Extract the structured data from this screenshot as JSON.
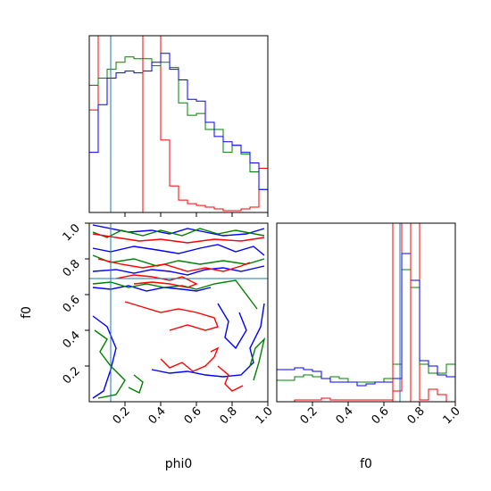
{
  "chart_data": {
    "type": "corner",
    "parameters": [
      "phi0",
      "f0"
    ],
    "axis_labels": {
      "x_left": "phi0",
      "x_right": "f0",
      "y_left": "f0"
    },
    "ticks": {
      "phi0": [
        0.2,
        0.4,
        0.6,
        0.8,
        1.0
      ],
      "phi0_labels": [
        "0.2",
        "0.4",
        "0.6",
        "0.8",
        "1.0"
      ],
      "f0": [
        0.2,
        0.4,
        0.6,
        0.8,
        1.0
      ],
      "f0_labels": [
        "0.2",
        "0.4",
        "0.6",
        "0.8",
        "1.0"
      ]
    },
    "ranges": {
      "phi0": [
        0.0,
        1.0
      ],
      "f0": [
        0.0,
        1.0
      ]
    },
    "colors": {
      "red": "#ff0000",
      "green": "#008000",
      "blue": "#0000ff",
      "truth": "#1f77b4"
    },
    "truth_lines": {
      "phi0": 0.12,
      "f0": 0.69
    },
    "red_markers": {
      "phi0": [
        0.0,
        0.3
      ],
      "f0": [
        0.65,
        0.75
      ]
    },
    "hist_phi0": {
      "bin_edges": [
        0.0,
        0.05,
        0.1,
        0.15,
        0.2,
        0.25,
        0.3,
        0.35,
        0.4,
        0.45,
        0.5,
        0.55,
        0.6,
        0.65,
        0.7,
        0.75,
        0.8,
        0.85,
        0.9,
        0.95,
        1.0
      ],
      "ymax": 1.0,
      "series": [
        {
          "color": "red",
          "values": [
            0.58,
            1.05,
            1.05,
            1.05,
            1.05,
            1.05,
            1.05,
            1.05,
            0.41,
            0.15,
            0.07,
            0.05,
            0.04,
            0.03,
            0.02,
            0.01,
            0.01,
            0.02,
            0.03,
            0.25
          ]
        },
        {
          "color": "green",
          "values": [
            0.72,
            0.76,
            0.81,
            0.85,
            0.88,
            0.87,
            0.87,
            0.83,
            0.85,
            0.82,
            0.62,
            0.55,
            0.56,
            0.47,
            0.47,
            0.34,
            0.38,
            0.33,
            0.23,
            0.13
          ]
        },
        {
          "color": "blue",
          "values": [
            0.34,
            0.61,
            0.76,
            0.79,
            0.8,
            0.79,
            0.8,
            0.85,
            0.9,
            0.81,
            0.75,
            0.64,
            0.63,
            0.51,
            0.43,
            0.4,
            0.38,
            0.34,
            0.28,
            0.13
          ]
        }
      ]
    },
    "hist_f0": {
      "bin_edges": [
        0.0,
        0.05,
        0.1,
        0.15,
        0.2,
        0.25,
        0.3,
        0.35,
        0.4,
        0.45,
        0.5,
        0.55,
        0.6,
        0.65,
        0.7,
        0.75,
        0.8,
        0.85,
        0.9,
        0.95,
        1.0
      ],
      "ymax": 1.0,
      "series": [
        {
          "color": "red",
          "values": [
            0.0,
            0.0,
            0.01,
            0.01,
            0.01,
            0.02,
            0.01,
            0.01,
            0.01,
            0.01,
            0.01,
            0.01,
            0.01,
            0.06,
            1.05,
            1.05,
            0.01,
            0.07,
            0.04,
            0.0
          ]
        },
        {
          "color": "green",
          "values": [
            0.12,
            0.12,
            0.14,
            0.15,
            0.14,
            0.13,
            0.14,
            0.13,
            0.11,
            0.11,
            0.11,
            0.11,
            0.13,
            0.21,
            0.74,
            0.64,
            0.21,
            0.16,
            0.16,
            0.21
          ]
        },
        {
          "color": "blue",
          "values": [
            0.18,
            0.18,
            0.19,
            0.18,
            0.17,
            0.13,
            0.11,
            0.11,
            0.11,
            0.09,
            0.1,
            0.11,
            0.11,
            0.13,
            0.83,
            0.68,
            0.23,
            0.2,
            0.15,
            0.14
          ]
        }
      ]
    },
    "contours": [
      {
        "color": "blue",
        "points": [
          [
            0.02,
            0.99
          ],
          [
            0.12,
            0.97
          ],
          [
            0.22,
            0.95
          ],
          [
            0.35,
            0.96
          ],
          [
            0.45,
            0.94
          ],
          [
            0.55,
            0.97
          ],
          [
            0.65,
            0.95
          ],
          [
            0.75,
            0.93
          ],
          [
            0.88,
            0.94
          ],
          [
            0.98,
            0.97
          ]
        ]
      },
      {
        "color": "blue",
        "points": [
          [
            0.02,
            0.86
          ],
          [
            0.12,
            0.84
          ],
          [
            0.25,
            0.87
          ],
          [
            0.38,
            0.85
          ],
          [
            0.5,
            0.83
          ],
          [
            0.62,
            0.86
          ],
          [
            0.72,
            0.88
          ],
          [
            0.82,
            0.84
          ],
          [
            0.92,
            0.87
          ],
          [
            0.98,
            0.82
          ]
        ]
      },
      {
        "color": "blue",
        "points": [
          [
            0.02,
            0.73
          ],
          [
            0.15,
            0.74
          ],
          [
            0.25,
            0.72
          ],
          [
            0.35,
            0.74
          ],
          [
            0.45,
            0.73
          ],
          [
            0.55,
            0.71
          ],
          [
            0.65,
            0.74
          ],
          [
            0.75,
            0.75
          ],
          [
            0.85,
            0.73
          ],
          [
            0.98,
            0.76
          ]
        ]
      },
      {
        "color": "blue",
        "points": [
          [
            0.02,
            0.64
          ],
          [
            0.12,
            0.63
          ],
          [
            0.22,
            0.65
          ],
          [
            0.32,
            0.62
          ],
          [
            0.42,
            0.64
          ],
          [
            0.52,
            0.63
          ],
          [
            0.6,
            0.62
          ],
          [
            0.68,
            0.64
          ]
        ]
      },
      {
        "color": "blue",
        "points": [
          [
            0.02,
            0.48
          ],
          [
            0.1,
            0.42
          ],
          [
            0.15,
            0.3
          ],
          [
            0.12,
            0.18
          ],
          [
            0.08,
            0.06
          ],
          [
            0.02,
            0.02
          ]
        ]
      },
      {
        "color": "blue",
        "points": [
          [
            0.35,
            0.18
          ],
          [
            0.45,
            0.16
          ],
          [
            0.55,
            0.17
          ],
          [
            0.65,
            0.15
          ],
          [
            0.75,
            0.14
          ],
          [
            0.85,
            0.15
          ],
          [
            0.92,
            0.22
          ],
          [
            0.9,
            0.3
          ],
          [
            0.96,
            0.42
          ],
          [
            0.98,
            0.55
          ]
        ]
      },
      {
        "color": "blue",
        "points": [
          [
            0.72,
            0.55
          ],
          [
            0.78,
            0.45
          ],
          [
            0.76,
            0.36
          ],
          [
            0.82,
            0.3
          ],
          [
            0.88,
            0.4
          ],
          [
            0.84,
            0.5
          ]
        ]
      },
      {
        "color": "green",
        "points": [
          [
            0.02,
            0.95
          ],
          [
            0.1,
            0.92
          ],
          [
            0.18,
            0.96
          ],
          [
            0.3,
            0.93
          ],
          [
            0.4,
            0.96
          ],
          [
            0.52,
            0.93
          ],
          [
            0.62,
            0.97
          ],
          [
            0.72,
            0.94
          ],
          [
            0.82,
            0.96
          ],
          [
            0.98,
            0.93
          ]
        ]
      },
      {
        "color": "green",
        "points": [
          [
            0.02,
            0.82
          ],
          [
            0.12,
            0.78
          ],
          [
            0.25,
            0.8
          ],
          [
            0.38,
            0.76
          ],
          [
            0.5,
            0.79
          ],
          [
            0.62,
            0.77
          ],
          [
            0.75,
            0.79
          ],
          [
            0.88,
            0.77
          ],
          [
            0.98,
            0.8
          ]
        ]
      },
      {
        "color": "green",
        "points": [
          [
            0.02,
            0.66
          ],
          [
            0.12,
            0.67
          ],
          [
            0.22,
            0.64
          ],
          [
            0.32,
            0.66
          ],
          [
            0.42,
            0.64
          ],
          [
            0.52,
            0.65
          ],
          [
            0.6,
            0.63
          ],
          [
            0.7,
            0.66
          ],
          [
            0.82,
            0.68
          ],
          [
            0.88,
            0.6
          ],
          [
            0.94,
            0.52
          ]
        ]
      },
      {
        "color": "green",
        "points": [
          [
            0.03,
            0.4
          ],
          [
            0.1,
            0.35
          ],
          [
            0.06,
            0.28
          ],
          [
            0.12,
            0.2
          ],
          [
            0.2,
            0.12
          ],
          [
            0.15,
            0.04
          ],
          [
            0.05,
            0.02
          ]
        ]
      },
      {
        "color": "green",
        "points": [
          [
            0.25,
            0.15
          ],
          [
            0.3,
            0.11
          ],
          [
            0.28,
            0.05
          ],
          [
            0.22,
            0.08
          ]
        ]
      },
      {
        "color": "green",
        "points": [
          [
            0.92,
            0.12
          ],
          [
            0.95,
            0.22
          ],
          [
            0.98,
            0.35
          ],
          [
            0.93,
            0.3
          ],
          [
            0.9,
            0.2
          ]
        ]
      },
      {
        "color": "red",
        "points": [
          [
            0.02,
            0.94
          ],
          [
            0.15,
            0.92
          ],
          [
            0.28,
            0.9
          ],
          [
            0.4,
            0.91
          ],
          [
            0.55,
            0.89
          ],
          [
            0.7,
            0.91
          ],
          [
            0.85,
            0.9
          ],
          [
            0.98,
            0.92
          ]
        ]
      },
      {
        "color": "red",
        "points": [
          [
            0.05,
            0.8
          ],
          [
            0.18,
            0.77
          ],
          [
            0.3,
            0.75
          ],
          [
            0.42,
            0.77
          ],
          [
            0.55,
            0.73
          ],
          [
            0.65,
            0.75
          ],
          [
            0.75,
            0.73
          ],
          [
            0.85,
            0.76
          ],
          [
            0.9,
            0.78
          ]
        ]
      },
      {
        "color": "red",
        "points": [
          [
            0.15,
            0.69
          ],
          [
            0.25,
            0.71
          ],
          [
            0.35,
            0.7
          ],
          [
            0.45,
            0.68
          ],
          [
            0.52,
            0.7
          ],
          [
            0.6,
            0.66
          ],
          [
            0.55,
            0.64
          ],
          [
            0.45,
            0.66
          ],
          [
            0.35,
            0.67
          ],
          [
            0.25,
            0.66
          ]
        ]
      },
      {
        "color": "red",
        "points": [
          [
            0.2,
            0.56
          ],
          [
            0.3,
            0.53
          ],
          [
            0.4,
            0.5
          ],
          [
            0.5,
            0.52
          ],
          [
            0.6,
            0.5
          ],
          [
            0.7,
            0.47
          ],
          [
            0.72,
            0.42
          ],
          [
            0.65,
            0.4
          ],
          [
            0.55,
            0.43
          ],
          [
            0.45,
            0.4
          ]
        ]
      },
      {
        "color": "red",
        "points": [
          [
            0.4,
            0.24
          ],
          [
            0.45,
            0.19
          ],
          [
            0.52,
            0.22
          ],
          [
            0.58,
            0.17
          ],
          [
            0.65,
            0.2
          ],
          [
            0.7,
            0.25
          ],
          [
            0.72,
            0.3
          ],
          [
            0.68,
            0.28
          ]
        ]
      },
      {
        "color": "red",
        "points": [
          [
            0.72,
            0.2
          ],
          [
            0.78,
            0.15
          ],
          [
            0.76,
            0.1
          ],
          [
            0.8,
            0.06
          ],
          [
            0.86,
            0.09
          ]
        ]
      }
    ]
  }
}
